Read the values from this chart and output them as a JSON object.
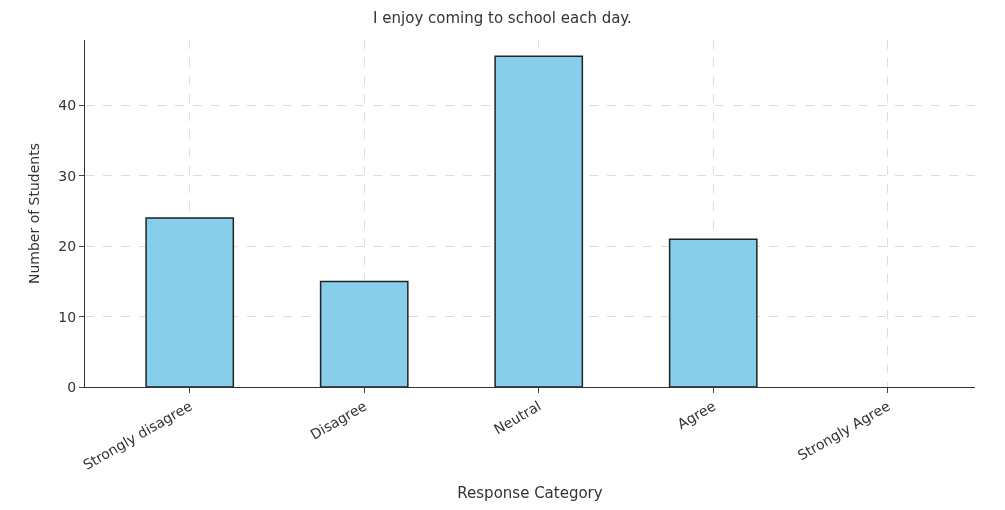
{
  "chart_data": {
    "type": "bar",
    "title": "I enjoy coming to school each day.",
    "xlabel": "Response Category",
    "ylabel": "Number of Students",
    "categories": [
      "Strongly disagree",
      "Disagree",
      "Neutral",
      "Agree",
      "Strongly Agree"
    ],
    "values": [
      24,
      15,
      47,
      21,
      0
    ],
    "color": "#87ceeb",
    "ylim": [
      0,
      49.3
    ],
    "yticks": [
      0,
      10,
      20,
      30,
      40
    ],
    "grid": true
  }
}
